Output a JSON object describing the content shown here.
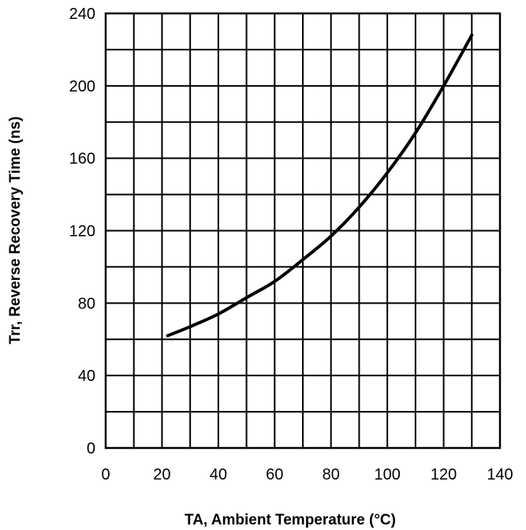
{
  "chart_data": {
    "type": "line",
    "title": "",
    "xlabel": "TA, Ambient Temperature (°C)",
    "ylabel": "Trr, Reverse Recovery Time  (ns)",
    "xlim": [
      0,
      140
    ],
    "ylim": [
      0,
      240
    ],
    "x_ticks": [
      0,
      20,
      40,
      60,
      80,
      100,
      120,
      140
    ],
    "y_ticks": [
      0,
      40,
      80,
      120,
      160,
      200,
      240
    ],
    "x_gridlines": [
      0,
      10,
      20,
      30,
      40,
      50,
      60,
      70,
      80,
      90,
      100,
      110,
      120,
      130,
      140
    ],
    "y_gridlines": [
      0,
      20,
      40,
      60,
      80,
      100,
      120,
      140,
      160,
      180,
      200,
      220,
      240
    ],
    "grid": true,
    "colors": {
      "line": "#000000",
      "grid": "#000000",
      "background": "#ffffff"
    },
    "series": [
      {
        "x": [
          22,
          30,
          40,
          50,
          60,
          70,
          80,
          90,
          100,
          110,
          120,
          130
        ],
        "y": [
          62,
          67,
          74,
          83,
          92,
          104,
          117,
          133,
          152,
          174,
          200,
          228
        ]
      }
    ]
  }
}
